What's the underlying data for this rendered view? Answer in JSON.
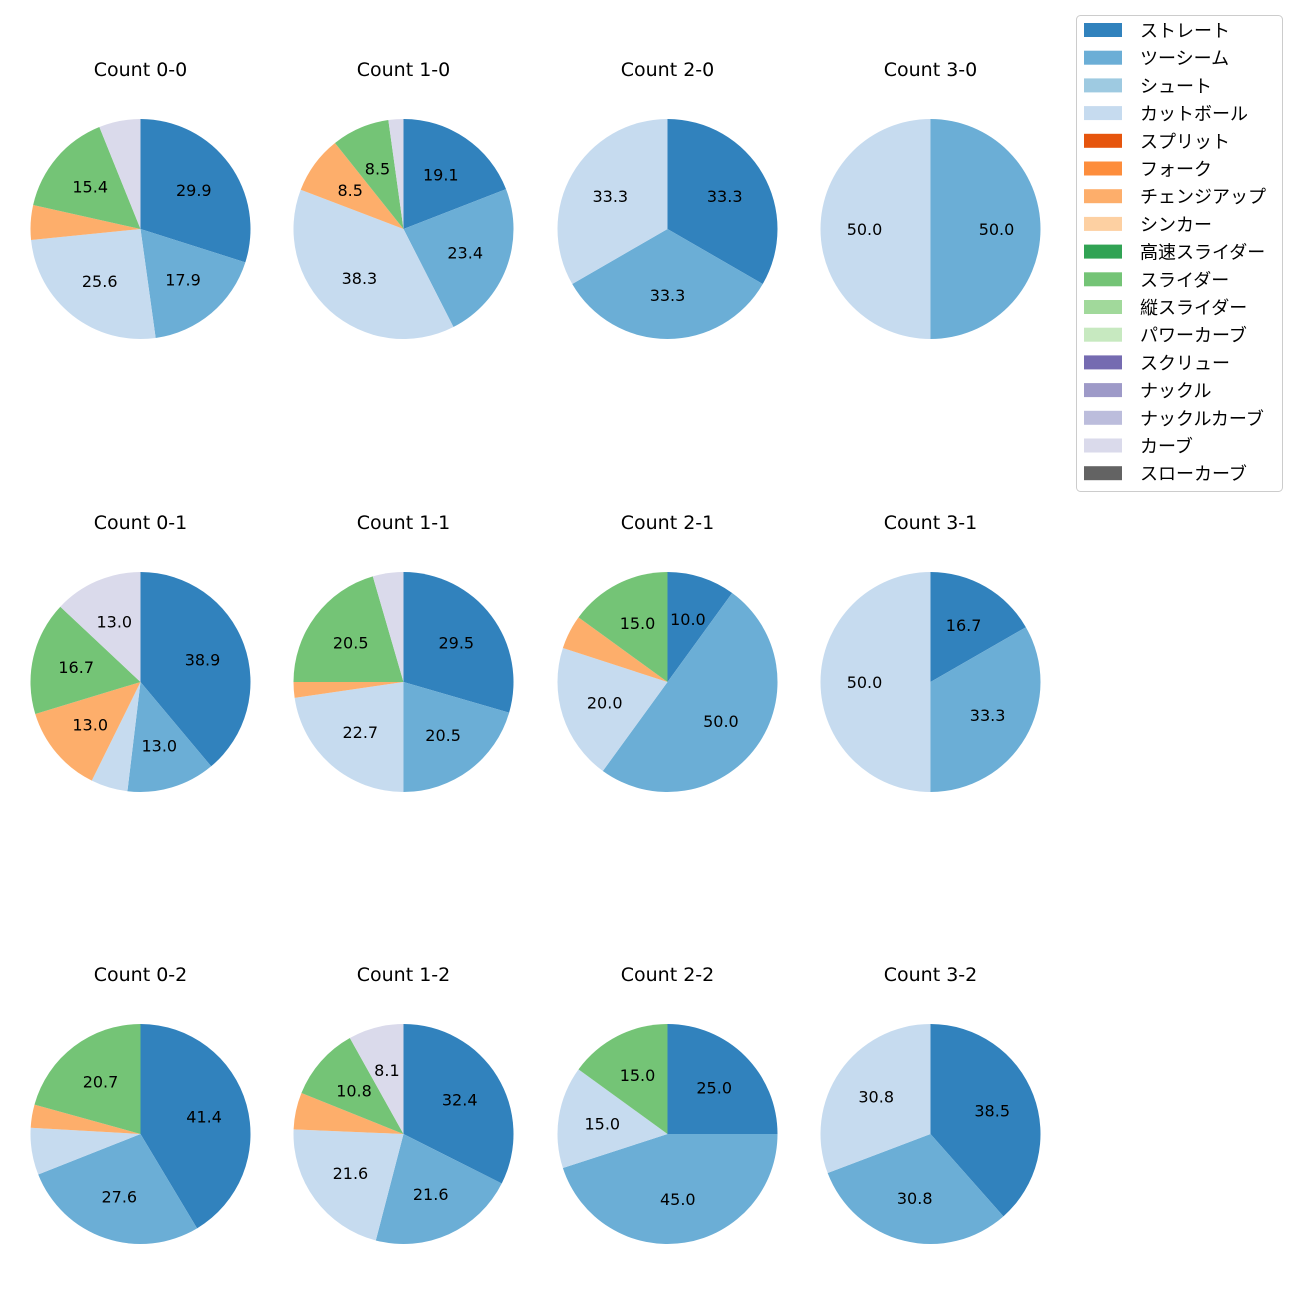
{
  "chart_data": {
    "type": "pie",
    "legend_position": "top-right",
    "pitch_types": [
      {
        "name": "ストレート",
        "color": "#3182bd"
      },
      {
        "name": "ツーシーム",
        "color": "#6baed6"
      },
      {
        "name": "シュート",
        "color": "#9ecae1"
      },
      {
        "name": "カットボール",
        "color": "#c6dbef"
      },
      {
        "name": "スプリット",
        "color": "#e6550d"
      },
      {
        "name": "フォーク",
        "color": "#fd8d3c"
      },
      {
        "name": "チェンジアップ",
        "color": "#fdae6b"
      },
      {
        "name": "シンカー",
        "color": "#fdd0a2"
      },
      {
        "name": "高速スライダー",
        "color": "#31a354"
      },
      {
        "name": "スライダー",
        "color": "#74c476"
      },
      {
        "name": "縦スライダー",
        "color": "#a1d99b"
      },
      {
        "name": "パワーカーブ",
        "color": "#c7e9c0"
      },
      {
        "name": "スクリュー",
        "color": "#756bb1"
      },
      {
        "name": "ナックル",
        "color": "#9e9ac8"
      },
      {
        "name": "ナックルカーブ",
        "color": "#bcbddc"
      },
      {
        "name": "カーブ",
        "color": "#dadaeb"
      },
      {
        "name": "スローカーブ",
        "color": "#636363"
      }
    ],
    "charts": [
      {
        "title": "Count 0-0",
        "slices": [
          {
            "type": "ストレート",
            "value": 29.9,
            "label": "29.9"
          },
          {
            "type": "ツーシーム",
            "value": 17.9,
            "label": "17.9"
          },
          {
            "type": "カットボール",
            "value": 25.6,
            "label": "25.6"
          },
          {
            "type": "チェンジアップ",
            "value": 5.1,
            "label": ""
          },
          {
            "type": "スライダー",
            "value": 15.4,
            "label": "15.4"
          },
          {
            "type": "カーブ",
            "value": 6.1,
            "label": ""
          }
        ]
      },
      {
        "title": "Count 1-0",
        "slices": [
          {
            "type": "ストレート",
            "value": 19.1,
            "label": "19.1"
          },
          {
            "type": "ツーシーム",
            "value": 23.4,
            "label": "23.4"
          },
          {
            "type": "カットボール",
            "value": 38.3,
            "label": "38.3"
          },
          {
            "type": "チェンジアップ",
            "value": 8.5,
            "label": "8.5"
          },
          {
            "type": "スライダー",
            "value": 8.5,
            "label": "8.5"
          },
          {
            "type": "カーブ",
            "value": 2.2,
            "label": ""
          }
        ]
      },
      {
        "title": "Count 2-0",
        "slices": [
          {
            "type": "ストレート",
            "value": 33.3,
            "label": "33.3"
          },
          {
            "type": "ツーシーム",
            "value": 33.3,
            "label": "33.3"
          },
          {
            "type": "カットボール",
            "value": 33.3,
            "label": "33.3"
          }
        ]
      },
      {
        "title": "Count 3-0",
        "slices": [
          {
            "type": "ツーシーム",
            "value": 50.0,
            "label": "50.0"
          },
          {
            "type": "カットボール",
            "value": 50.0,
            "label": "50.0"
          }
        ]
      },
      {
        "title": "Count 0-1",
        "slices": [
          {
            "type": "ストレート",
            "value": 38.9,
            "label": "38.9"
          },
          {
            "type": "ツーシーム",
            "value": 13.0,
            "label": "13.0"
          },
          {
            "type": "カットボール",
            "value": 5.4,
            "label": ""
          },
          {
            "type": "チェンジアップ",
            "value": 13.0,
            "label": "13.0"
          },
          {
            "type": "スライダー",
            "value": 16.7,
            "label": "16.7"
          },
          {
            "type": "カーブ",
            "value": 13.0,
            "label": "13.0"
          }
        ]
      },
      {
        "title": "Count 1-1",
        "slices": [
          {
            "type": "ストレート",
            "value": 29.5,
            "label": "29.5"
          },
          {
            "type": "ツーシーム",
            "value": 20.5,
            "label": "20.5"
          },
          {
            "type": "カットボール",
            "value": 22.7,
            "label": "22.7"
          },
          {
            "type": "チェンジアップ",
            "value": 2.3,
            "label": ""
          },
          {
            "type": "スライダー",
            "value": 20.5,
            "label": "20.5"
          },
          {
            "type": "カーブ",
            "value": 4.5,
            "label": ""
          }
        ]
      },
      {
        "title": "Count 2-1",
        "slices": [
          {
            "type": "ストレート",
            "value": 10.0,
            "label": "10.0"
          },
          {
            "type": "ツーシーム",
            "value": 50.0,
            "label": "50.0"
          },
          {
            "type": "カットボール",
            "value": 20.0,
            "label": "20.0"
          },
          {
            "type": "チェンジアップ",
            "value": 5.0,
            "label": ""
          },
          {
            "type": "スライダー",
            "value": 15.0,
            "label": "15.0"
          }
        ]
      },
      {
        "title": "Count 3-1",
        "slices": [
          {
            "type": "ストレート",
            "value": 16.7,
            "label": "16.7"
          },
          {
            "type": "ツーシーム",
            "value": 33.3,
            "label": "33.3"
          },
          {
            "type": "カットボール",
            "value": 50.0,
            "label": "50.0"
          }
        ]
      },
      {
        "title": "Count 0-2",
        "slices": [
          {
            "type": "ストレート",
            "value": 41.4,
            "label": "41.4"
          },
          {
            "type": "ツーシーム",
            "value": 27.6,
            "label": "27.6"
          },
          {
            "type": "カットボール",
            "value": 6.9,
            "label": ""
          },
          {
            "type": "チェンジアップ",
            "value": 3.4,
            "label": ""
          },
          {
            "type": "スライダー",
            "value": 20.7,
            "label": "20.7"
          }
        ]
      },
      {
        "title": "Count 1-2",
        "slices": [
          {
            "type": "ストレート",
            "value": 32.4,
            "label": "32.4"
          },
          {
            "type": "ツーシーム",
            "value": 21.6,
            "label": "21.6"
          },
          {
            "type": "カットボール",
            "value": 21.6,
            "label": "21.6"
          },
          {
            "type": "チェンジアップ",
            "value": 5.4,
            "label": ""
          },
          {
            "type": "スライダー",
            "value": 10.8,
            "label": "10.8"
          },
          {
            "type": "カーブ",
            "value": 8.1,
            "label": "8.1"
          }
        ]
      },
      {
        "title": "Count 2-2",
        "slices": [
          {
            "type": "ストレート",
            "value": 25.0,
            "label": "25.0"
          },
          {
            "type": "ツーシーム",
            "value": 45.0,
            "label": "45.0"
          },
          {
            "type": "カットボール",
            "value": 15.0,
            "label": "15.0"
          },
          {
            "type": "スライダー",
            "value": 15.0,
            "label": "15.0"
          }
        ]
      },
      {
        "title": "Count 3-2",
        "slices": [
          {
            "type": "ストレート",
            "value": 38.5,
            "label": "38.5"
          },
          {
            "type": "ツーシーム",
            "value": 30.8,
            "label": "30.8"
          },
          {
            "type": "カットボール",
            "value": 30.8,
            "label": "30.8"
          }
        ]
      }
    ]
  }
}
